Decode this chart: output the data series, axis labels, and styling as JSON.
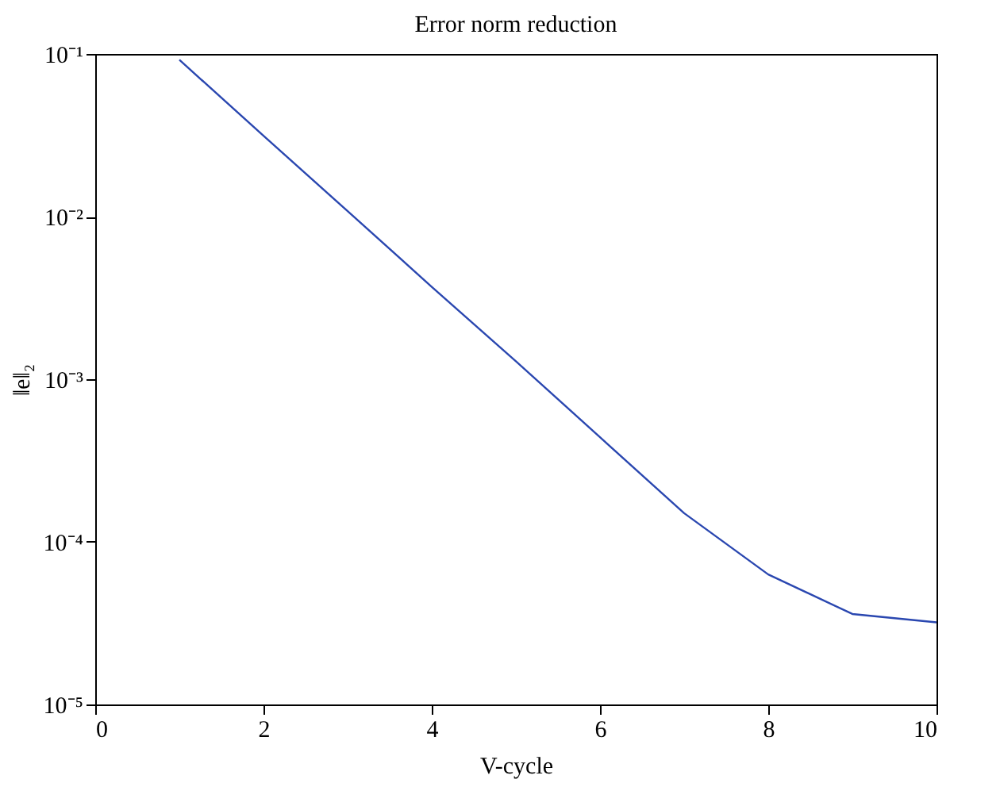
{
  "chart_data": {
    "type": "line",
    "title": "Error norm reduction",
    "xlabel": "V-cycle",
    "ylabel": "‖e‖₂",
    "x": [
      1,
      2,
      3,
      4,
      5,
      6,
      7,
      8,
      9,
      10
    ],
    "series": [
      {
        "color": "#2a47b0",
        "values": [
          0.092,
          0.0314,
          0.0108,
          0.0037,
          0.00129,
          0.00044,
          0.00015,
          6.3e-05,
          3.6e-05,
          3.2e-05
        ]
      }
    ],
    "xlim": [
      0,
      10
    ],
    "xticks": [
      0,
      2,
      4,
      6,
      8,
      10
    ],
    "ylim": [
      1e-05,
      0.1
    ],
    "yticks": [
      {
        "value": 1e-05,
        "label": "10⁻⁵"
      },
      {
        "value": 0.0001,
        "label": "10⁻⁴"
      },
      {
        "value": 0.001,
        "label": "10⁻³"
      },
      {
        "value": 0.01,
        "label": "10⁻²"
      },
      {
        "value": 0.1,
        "label": "10⁻¹"
      }
    ],
    "log": "y",
    "grid": false,
    "marker": "none",
    "line_style": "solid"
  }
}
